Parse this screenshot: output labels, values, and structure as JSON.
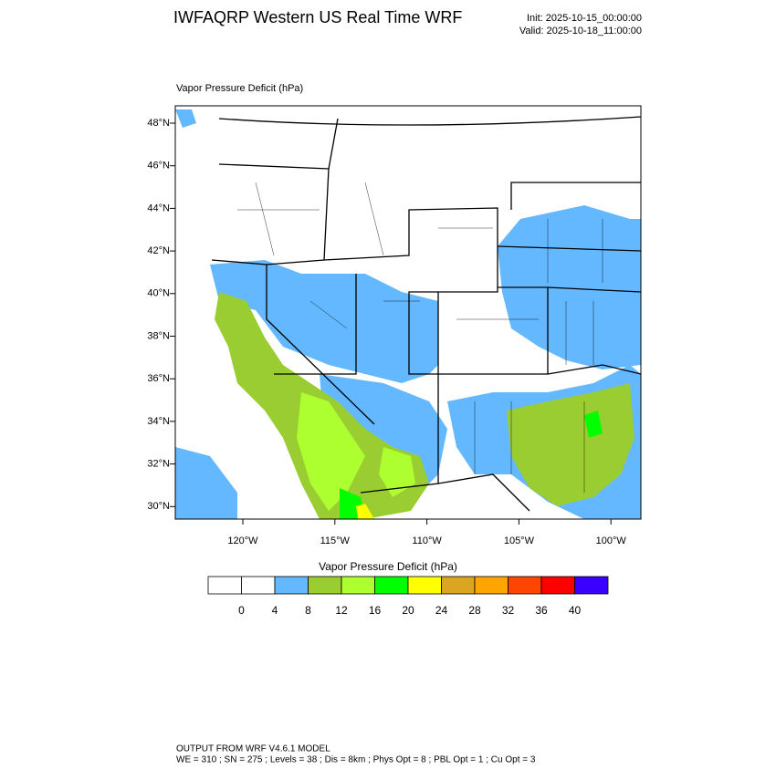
{
  "header": {
    "title": "IWFAQRP Western US Real Time WRF",
    "init": "Init: 2025-10-15_00:00:00",
    "valid": "Valid: 2025-10-18_11:00:00"
  },
  "map": {
    "label": "Vapor Pressure Deficit   (hPa)",
    "lat_labels": [
      "48°N",
      "46°N",
      "44°N",
      "42°N",
      "40°N",
      "38°N",
      "36°N",
      "34°N",
      "32°N",
      "30°N"
    ],
    "lon_labels": [
      "120°W",
      "115°W",
      "110°W",
      "105°W",
      "100°W"
    ]
  },
  "colorbar": {
    "title": "Vapor Pressure Deficit  (hPa)",
    "colors": [
      "#ffffff",
      "#ffffff",
      "#63b8ff",
      "#9acd32",
      "#adff2f",
      "#00ff00",
      "#ffff00",
      "#daa520",
      "#ffa500",
      "#ff4500",
      "#ff0000",
      "#3a00ff"
    ],
    "labels": [
      0,
      4,
      8,
      12,
      16,
      20,
      24,
      28,
      32,
      36,
      40
    ]
  },
  "footer": {
    "line1": "OUTPUT FROM WRF V4.6.1 MODEL",
    "line2": "WE = 310 ; SN = 275 ; Levels = 38 ; Dis = 8km ; Phys Opt = 8 ; PBL Opt = 1 ; Cu Opt = 3"
  }
}
